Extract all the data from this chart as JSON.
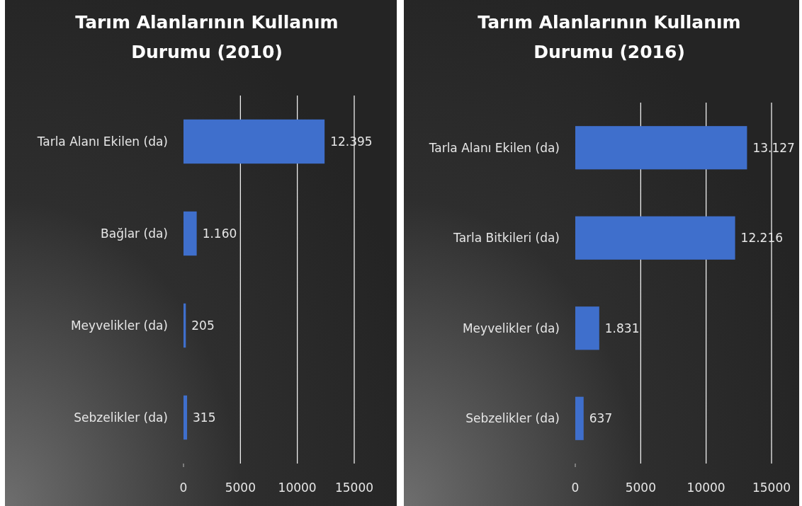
{
  "chart_data": [
    {
      "type": "bar",
      "orientation": "horizontal",
      "title": "Tarım Alanlarının Kullanım Durumu (2010)",
      "categories": [
        "Tarla Alanı Ekilen (da)",
        "Bağlar (da)",
        "Meyvelikler (da)",
        "Sebzelikler (da)"
      ],
      "values": [
        12395,
        1160,
        205,
        315
      ],
      "value_labels": [
        "12.395",
        "1.160",
        "205",
        "315"
      ],
      "color": "#3f6fcc",
      "xlim": [
        0,
        15000
      ],
      "xticks": [
        0,
        5000,
        10000,
        15000
      ],
      "grid": "x"
    },
    {
      "type": "bar",
      "orientation": "horizontal",
      "title": "Tarım Alanlarının Kullanım Durumu (2016)",
      "categories": [
        "Tarla Alanı Ekilen (da)",
        "Tarla Bitkileri (da)",
        "Meyvelikler (da)",
        "Sebzelikler (da)"
      ],
      "values": [
        13127,
        12216,
        1831,
        637
      ],
      "value_labels": [
        "13.127",
        "12.216",
        "1.831",
        "637"
      ],
      "color": "#3f6fcc",
      "xlim": [
        0,
        15000
      ],
      "xticks": [
        0,
        5000,
        10000,
        15000
      ],
      "grid": "x"
    }
  ]
}
